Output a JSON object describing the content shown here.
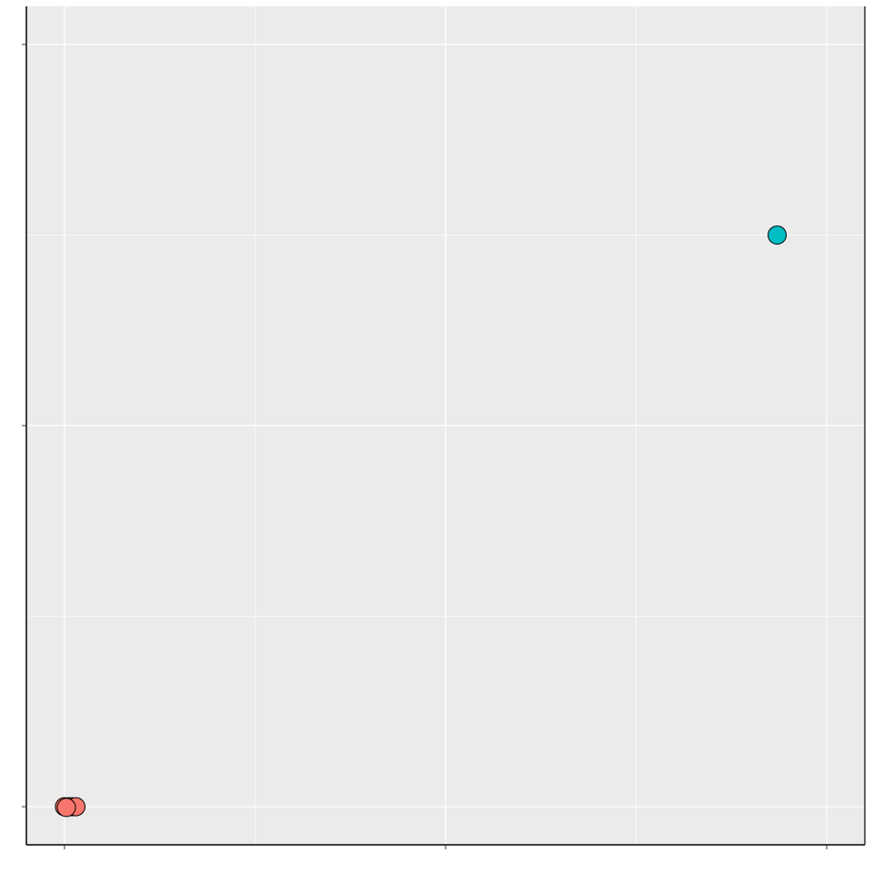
{
  "chart_data": {
    "type": "scatter",
    "title": "",
    "xlabel": "",
    "ylabel": "",
    "xlim": [
      -0.1,
      2.1
    ],
    "ylim": [
      -0.1,
      2.1
    ],
    "x_major_ticks": [
      0,
      1,
      2
    ],
    "x_minor_gridlines": [
      0.5,
      1.5
    ],
    "y_major_ticks": [
      0,
      1,
      2
    ],
    "y_minor_gridlines": [
      0.5,
      1.5
    ],
    "tick_labels_shown": false,
    "grid": true,
    "legend": "none",
    "panel_background": "#EBEBEB",
    "grid_color": "#FFFFFF",
    "series": [
      {
        "color": "#F8766D",
        "points": [
          {
            "x": 0.0,
            "y": 0.0
          },
          {
            "x": 0.01,
            "y": 0.0
          },
          {
            "x": 0.02,
            "y": 0.0
          },
          {
            "x": 0.03,
            "y": 0.0
          },
          {
            "x": 0.005,
            "y": -0.002
          }
        ]
      },
      {
        "color": "#00BFC4",
        "points": [
          {
            "x": 1.87,
            "y": 1.5
          }
        ]
      }
    ]
  }
}
